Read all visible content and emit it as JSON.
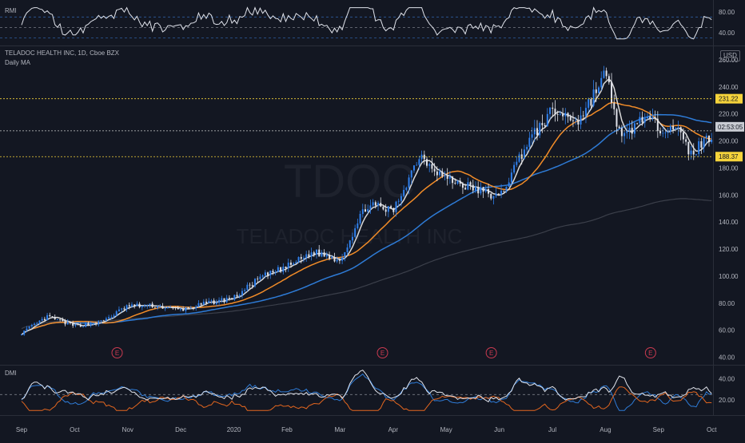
{
  "chart_data": {
    "symbol": "TDOC",
    "title": "TELADOC HEALTH INC, 1D, Cboe BZX",
    "watermark_symbol": "TDOC",
    "watermark_name": "TELADOC HEALTH INC",
    "indicator_label": "Daily MA",
    "currency": "USD",
    "ylim": [
      35,
      270
    ],
    "price_ticks": [
      "260.00",
      "240.00",
      "220.00",
      "200.00",
      "180.00",
      "160.00",
      "140.00",
      "120.00",
      "100.00",
      "80.00",
      "60.00",
      "40.00"
    ],
    "x_tick_labels": [
      "Sep",
      "Oct",
      "Nov",
      "Dec",
      "2020",
      "Feb",
      "Mar",
      "Apr",
      "May",
      "Jun",
      "Jul",
      "Aug",
      "Sep",
      "Oct"
    ],
    "price_lines": [
      {
        "value": 231.22,
        "label": "231.22",
        "color": "#f5d33b"
      },
      {
        "value": 188.37,
        "label": "188.37",
        "color": "#f5d33b"
      },
      {
        "value": 207.5,
        "label": "",
        "color": "#c9c9c9"
      }
    ],
    "countdown_label": "02:53:05",
    "earnings_marker": "E",
    "earnings_month_positions": [
      1.8,
      6.8,
      8.85,
      11.85
    ],
    "price_anchors": {
      "months": [
        0,
        0.5,
        1,
        1.5,
        2,
        2.5,
        3,
        3.5,
        4,
        4.5,
        5,
        5.5,
        6,
        6.5,
        7,
        7.5,
        8,
        8.5,
        9,
        9.5,
        10,
        10.5,
        11,
        11.3,
        11.7,
        12,
        12.3,
        12.6,
        13
      ],
      "close": [
        58,
        70,
        63,
        66,
        78,
        78,
        75,
        80,
        84,
        99,
        107,
        118,
        112,
        153,
        148,
        190,
        172,
        165,
        158,
        197,
        222,
        215,
        250,
        200,
        218,
        210,
        212,
        190,
        205
      ]
    },
    "moving_averages": [
      {
        "name": "MA fast",
        "color": "#d9d9d9",
        "period": 5
      },
      {
        "name": "MA mid",
        "color": "#f28c28",
        "period": 20
      },
      {
        "name": "MA slow",
        "color": "#2e7bd6",
        "period": 50
      },
      {
        "name": "MA long",
        "color": "#3b3f4a",
        "period": 200
      }
    ],
    "rmi": {
      "label": "RMI",
      "ticks": [
        "80.00",
        "40.00"
      ],
      "levels": [
        70,
        50,
        30
      ],
      "ylim": [
        20,
        95
      ]
    },
    "dmi": {
      "label": "DMI",
      "ticks": [
        "40.00",
        "20.00"
      ],
      "level": 25,
      "ylim": [
        8,
        50
      ],
      "series": [
        {
          "name": "+DI",
          "color": "#2e7bd6"
        },
        {
          "name": "-DI",
          "color": "#e3661f"
        },
        {
          "name": "ADX",
          "color": "#e0e3eb"
        }
      ]
    }
  }
}
